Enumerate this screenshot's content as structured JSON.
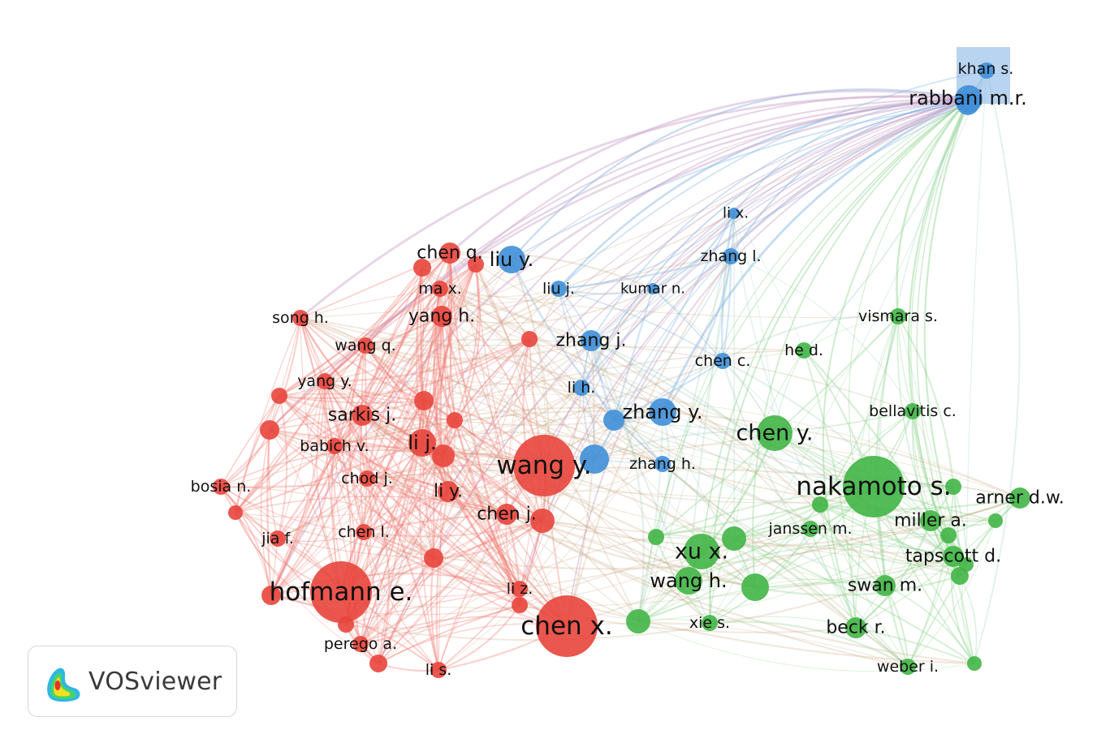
{
  "colors": {
    "cluster_red": "#e8453c",
    "cluster_blue": "#3f8fd8",
    "cluster_green": "#41b546",
    "link_red": "#f07a72",
    "link_blue": "#7fb1e3",
    "link_green": "#8fd48f",
    "label": "#111111"
  },
  "logo": {
    "text": "VOSviewer",
    "icon": "vosviewer-density-icon"
  },
  "nodes": [
    {
      "id": "khan_s",
      "label": "khan s.",
      "cluster": "blue",
      "weight": 3
    },
    {
      "id": "rabbani_mr",
      "label": "rabbani m.r.",
      "cluster": "blue",
      "weight": 5
    },
    {
      "id": "li_x",
      "label": "li x.",
      "cluster": "blue",
      "weight": 2
    },
    {
      "id": "zhang_l",
      "label": "zhang l.",
      "cluster": "blue",
      "weight": 3
    },
    {
      "id": "liu_y",
      "label": "liu y.",
      "cluster": "blue",
      "weight": 5
    },
    {
      "id": "liu_j",
      "label": "liu j.",
      "cluster": "blue",
      "weight": 3
    },
    {
      "id": "kumar_n",
      "label": "kumar n.",
      "cluster": "blue",
      "weight": 2
    },
    {
      "id": "zhang_j",
      "label": "zhang j.",
      "cluster": "blue",
      "weight": 4
    },
    {
      "id": "chen_c",
      "label": "chen c.",
      "cluster": "blue",
      "weight": 3
    },
    {
      "id": "li_h",
      "label": "li h.",
      "cluster": "blue",
      "weight": 3
    },
    {
      "id": "zhang_y",
      "label": "zhang y.",
      "cluster": "blue",
      "weight": 5
    },
    {
      "id": "zhang_h",
      "label": "zhang h.",
      "cluster": "blue",
      "weight": 3
    },
    {
      "id": "chen_q",
      "label": "chen q.",
      "cluster": "red",
      "weight": 4
    },
    {
      "id": "ma_x",
      "label": "ma x.",
      "cluster": "red",
      "weight": 3
    },
    {
      "id": "yang_h",
      "label": "yang h.",
      "cluster": "red",
      "weight": 4
    },
    {
      "id": "song_h",
      "label": "song h.",
      "cluster": "red",
      "weight": 3
    },
    {
      "id": "wang_q",
      "label": "wang q.",
      "cluster": "red",
      "weight": 3
    },
    {
      "id": "yang_y",
      "label": "yang y.",
      "cluster": "red",
      "weight": 3
    },
    {
      "id": "sarkis_j",
      "label": "sarkis j.",
      "cluster": "red",
      "weight": 4
    },
    {
      "id": "babich_v",
      "label": "babich v.",
      "cluster": "red",
      "weight": 3
    },
    {
      "id": "li_j",
      "label": "li j.",
      "cluster": "red",
      "weight": 5
    },
    {
      "id": "wang_y",
      "label": "wang y.",
      "cluster": "red",
      "weight": 10
    },
    {
      "id": "bosia_n",
      "label": "bosia n.",
      "cluster": "red",
      "weight": 3
    },
    {
      "id": "chod_j",
      "label": "chod j.",
      "cluster": "red",
      "weight": 3
    },
    {
      "id": "li_y",
      "label": "li y.",
      "cluster": "red",
      "weight": 4
    },
    {
      "id": "chen_j",
      "label": "chen j.",
      "cluster": "red",
      "weight": 4
    },
    {
      "id": "jia_f",
      "label": "jia f.",
      "cluster": "red",
      "weight": 3
    },
    {
      "id": "chen_l",
      "label": "chen l.",
      "cluster": "red",
      "weight": 3
    },
    {
      "id": "hofmann_e",
      "label": "hofmann e.",
      "cluster": "red",
      "weight": 10
    },
    {
      "id": "li_z",
      "label": "li z.",
      "cluster": "red",
      "weight": 3
    },
    {
      "id": "chen_x",
      "label": "chen x.",
      "cluster": "red",
      "weight": 10
    },
    {
      "id": "perego_a",
      "label": "perego a.",
      "cluster": "red",
      "weight": 3
    },
    {
      "id": "li_s",
      "label": "li s.",
      "cluster": "red",
      "weight": 3
    },
    {
      "id": "vismara_s",
      "label": "vismara s.",
      "cluster": "green",
      "weight": 3
    },
    {
      "id": "he_d",
      "label": "he d.",
      "cluster": "green",
      "weight": 3
    },
    {
      "id": "bellavitis_c",
      "label": "bellavitis c.",
      "cluster": "green",
      "weight": 3
    },
    {
      "id": "chen_y",
      "label": "chen y.",
      "cluster": "green",
      "weight": 6
    },
    {
      "id": "nakamoto_s",
      "label": "nakamoto s.",
      "cluster": "green",
      "weight": 10
    },
    {
      "id": "arner_dw",
      "label": "arner d.w.",
      "cluster": "green",
      "weight": 4
    },
    {
      "id": "miller_a",
      "label": "miller a.",
      "cluster": "green",
      "weight": 4
    },
    {
      "id": "janssen_m",
      "label": "janssen m.",
      "cluster": "green",
      "weight": 3
    },
    {
      "id": "xu_x",
      "label": "xu x.",
      "cluster": "green",
      "weight": 6
    },
    {
      "id": "tapscott_d",
      "label": "tapscott d.",
      "cluster": "green",
      "weight": 4
    },
    {
      "id": "wang_h",
      "label": "wang h.",
      "cluster": "green",
      "weight": 5
    },
    {
      "id": "swan_m",
      "label": "swan m.",
      "cluster": "green",
      "weight": 4
    },
    {
      "id": "xie_s",
      "label": "xie s.",
      "cluster": "green",
      "weight": 3
    },
    {
      "id": "beck_r",
      "label": "beck r.",
      "cluster": "green",
      "weight": 4
    },
    {
      "id": "weber_i",
      "label": "weber i.",
      "cluster": "green",
      "weight": 3
    }
  ]
}
